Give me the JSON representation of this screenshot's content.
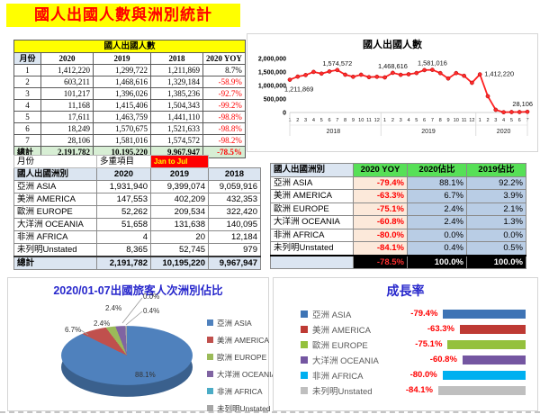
{
  "title": "國人出國人數與洲別統計",
  "colors": {
    "title_bg": "#FFFF00",
    "title_text": "#FF0000",
    "negative": "#FF0000",
    "chart_title_blue": "#2828CC",
    "green_header": "#57E057",
    "yoy_cell_bg": "#FCE9DA",
    "ratio_cell_bg": "#B9CDE5",
    "header_blue": "#DBE5F1",
    "total_green": "#D7EED4",
    "line_red": "#FF2020"
  },
  "monthly_table": {
    "title": "國人出國人數",
    "headers": [
      "月份",
      "2020",
      "2019",
      "2018",
      "2020 YOY"
    ],
    "rows": [
      {
        "month": "1",
        "v2020": "1,412,220",
        "v2019": "1,299,722",
        "v2018": "1,211,869",
        "yoy": "8.7%"
      },
      {
        "month": "2",
        "v2020": "603,211",
        "v2019": "1,468,616",
        "v2018": "1,329,184",
        "yoy": "-58.9%"
      },
      {
        "month": "3",
        "v2020": "101,217",
        "v2019": "1,396,026",
        "v2018": "1,385,236",
        "yoy": "-92.7%"
      },
      {
        "month": "4",
        "v2020": "11,168",
        "v2019": "1,415,406",
        "v2018": "1,504,343",
        "yoy": "-99.2%"
      },
      {
        "month": "5",
        "v2020": "17,611",
        "v2019": "1,463,759",
        "v2018": "1,441,110",
        "yoy": "-98.8%"
      },
      {
        "month": "6",
        "v2020": "18,249",
        "v2019": "1,570,675",
        "v2018": "1,521,633",
        "yoy": "-98.8%"
      },
      {
        "month": "7",
        "v2020": "28,106",
        "v2019": "1,581,016",
        "v2018": "1,574,572",
        "yoy": "-98.2%"
      }
    ],
    "total": {
      "label": "總計",
      "v2020": "2,191,782",
      "v2019": "10,195,220",
      "v2018": "9,967,947",
      "yoy": "-78.5%"
    }
  },
  "filter_row": {
    "label": "月份",
    "filter": "多重項目",
    "range": "Jan to Jul"
  },
  "continent_table": {
    "headers": [
      "國人出國洲別",
      "2020",
      "2019",
      "2018"
    ],
    "rows": [
      {
        "name": "亞洲 ASIA",
        "v2020": "1,931,940",
        "v2019": "9,399,074",
        "v2018": "9,059,916"
      },
      {
        "name": "美洲 AMERICA",
        "v2020": "147,553",
        "v2019": "402,209",
        "v2018": "432,353"
      },
      {
        "name": "歐洲 EUROPE",
        "v2020": "52,262",
        "v2019": "209,534",
        "v2018": "322,420"
      },
      {
        "name": "大洋洲 OCEANIA",
        "v2020": "51,658",
        "v2019": "131,638",
        "v2018": "140,095"
      },
      {
        "name": "非洲 AFRICA",
        "v2020": "4",
        "v2019": "20",
        "v2018": "12,184"
      },
      {
        "name": "未列明Unstated",
        "v2020": "8,365",
        "v2019": "52,745",
        "v2018": "979"
      }
    ],
    "total": {
      "label": "總計",
      "v2020": "2,191,782",
      "v2019": "10,195,220",
      "v2018": "9,967,947"
    }
  },
  "ratio_table": {
    "headers": [
      "國人出國洲別",
      "2020 YOY",
      "2020佔比",
      "2019佔比"
    ],
    "rows": [
      {
        "name": "亞洲 ASIA",
        "yoy": "-79.4%",
        "r2020": "88.1%",
        "r2019": "92.2%"
      },
      {
        "name": "美洲 AMERICA",
        "yoy": "-63.3%",
        "r2020": "6.7%",
        "r2019": "3.9%"
      },
      {
        "name": "歐洲 EUROPE",
        "yoy": "-75.1%",
        "r2020": "2.4%",
        "r2019": "2.1%"
      },
      {
        "name": "大洋洲 OCEANIA",
        "yoy": "-60.8%",
        "r2020": "2.4%",
        "r2019": "1.3%"
      },
      {
        "name": "非洲 AFRICA",
        "yoy": "-80.0%",
        "r2020": "0.0%",
        "r2019": "0.0%"
      },
      {
        "name": "未列明Unstated",
        "yoy": "-84.1%",
        "r2020": "0.4%",
        "r2019": "0.5%"
      }
    ],
    "total": {
      "yoy": "-78.5%",
      "r2020": "100.0%",
      "r2019": "100.0%"
    }
  },
  "chart_data": [
    {
      "type": "line",
      "title": "國人出國人數",
      "ylim": [
        0,
        2000000
      ],
      "yticks": [
        0,
        500000,
        1000000,
        1500000,
        2000000
      ],
      "grid": false,
      "x_groups": [
        {
          "year": "2018",
          "months": [
            "1",
            "2",
            "3",
            "4",
            "5",
            "6",
            "7",
            "8",
            "9",
            "10",
            "11",
            "12"
          ]
        },
        {
          "year": "2019",
          "months": [
            "1",
            "2",
            "3",
            "4",
            "5",
            "6",
            "7",
            "8",
            "9",
            "10",
            "11",
            "12"
          ]
        },
        {
          "year": "2020",
          "months": [
            "1",
            "2",
            "3",
            "4",
            "5",
            "6",
            "7"
          ]
        }
      ],
      "series": [
        {
          "name": "國人出國人數",
          "values": [
            1211869,
            1329184,
            1385236,
            1504343,
            1441110,
            1521633,
            1574572,
            1400000,
            1325000,
            1400000,
            1310000,
            1325000,
            1299722,
            1468616,
            1396026,
            1415406,
            1463759,
            1570675,
            1581016,
            1460000,
            1260000,
            1460000,
            1360000,
            1100000,
            1412220,
            603211,
            101217,
            11168,
            17611,
            18249,
            28106
          ]
        }
      ],
      "point_labels": [
        {
          "index": 0,
          "text": "1,211,869"
        },
        {
          "index": 6,
          "text": "1,574,572"
        },
        {
          "index": 13,
          "text": "1,468,616"
        },
        {
          "index": 18,
          "text": "1,581,016"
        },
        {
          "index": 24,
          "text": "1,412,220"
        },
        {
          "index": 30,
          "text": "28,106"
        }
      ],
      "line_color": "#FF2020"
    },
    {
      "type": "pie",
      "title": "2020/01-07出國旅客人次洲別佔比",
      "labels": [
        "亞洲 ASIA",
        "美洲 AMERICA",
        "歐洲 EUROPE",
        "大洋洲 OCEANIA",
        "非洲 AFRICA",
        "未列明Unstated"
      ],
      "values": [
        88.1,
        6.7,
        2.4,
        2.4,
        0.0,
        0.4
      ],
      "colors": [
        "#4F81BD",
        "#C0504D",
        "#9BBB59",
        "#8064A2",
        "#4BACC6",
        "#A6A6A6"
      ],
      "legend_position": "right",
      "effect": "3d"
    },
    {
      "type": "bar",
      "title": "成長率",
      "orientation": "horizontal",
      "categories": [
        "亞洲 ASIA",
        "美洲 AMERICA",
        "歐洲 EUROPE",
        "大洋洲 OCEANIA",
        "非洲 AFRICA",
        "未列明Unstated"
      ],
      "values": [
        -79.4,
        -63.3,
        -75.1,
        -60.8,
        -80.0,
        -84.1
      ],
      "colors": [
        "#3E74B5",
        "#BE3A34",
        "#94C13D",
        "#7456A1",
        "#00B0F0",
        "#BFBFBF"
      ],
      "value_label_color": "#FF0000"
    }
  ]
}
